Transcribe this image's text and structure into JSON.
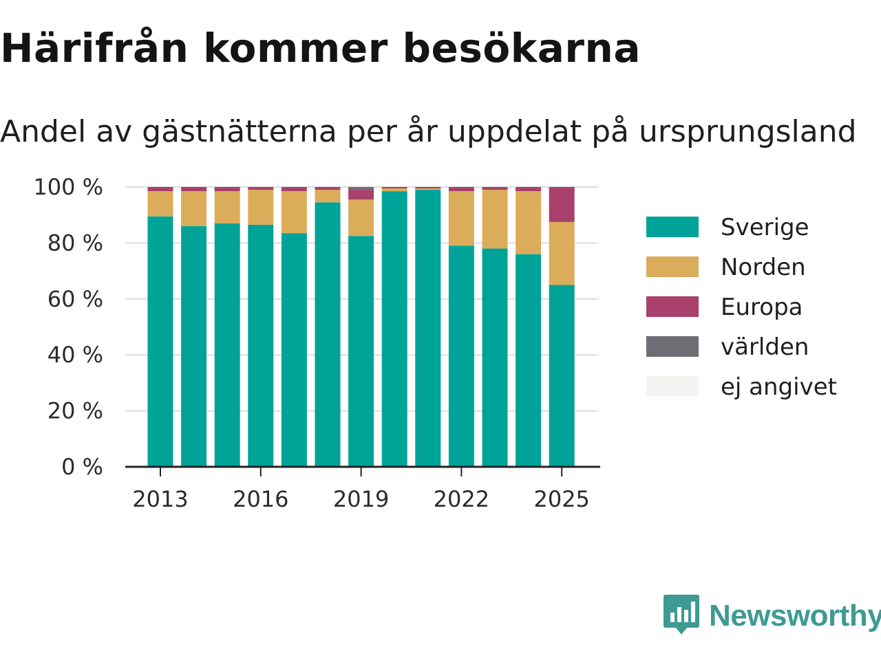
{
  "title": "Härifrån kommer besökarna",
  "subtitle": "Andel av gästnätterna per år uppdelat på ursprungsland",
  "brand": {
    "name": "Newsworthy",
    "logo_icon": "newsworthy-chart-logo-icon",
    "color": "#3e9a93"
  },
  "chart_data": {
    "type": "bar",
    "stacked": true,
    "categories": [
      "2013",
      "2014",
      "2015",
      "2016",
      "2017",
      "2018",
      "2019",
      "2020",
      "2021",
      "2022",
      "2023",
      "2024",
      "2025"
    ],
    "x_tick_labels": [
      "2013",
      "2016",
      "2019",
      "2022",
      "2025"
    ],
    "y_ticks": [
      0,
      20,
      40,
      60,
      80,
      100
    ],
    "y_tick_labels": [
      "0 %",
      "20 %",
      "40 %",
      "60 %",
      "80 %",
      "100 %"
    ],
    "ylim": [
      0,
      100
    ],
    "grid": true,
    "legend_position": "right",
    "series": [
      {
        "name": "Sverige",
        "color": "#00a398",
        "values": [
          89.5,
          86,
          87,
          86.5,
          83.5,
          94.5,
          82.5,
          98.5,
          99,
          79,
          78,
          76,
          65
        ]
      },
      {
        "name": "Norden",
        "color": "#dbad5b",
        "values": [
          9,
          12.5,
          11.5,
          12.5,
          15,
          4.5,
          13,
          1,
          0.5,
          19.5,
          21,
          22.5,
          22.5
        ]
      },
      {
        "name": "Europa",
        "color": "#a8416b",
        "values": [
          1.5,
          1.5,
          1.5,
          1,
          1.5,
          1,
          3.5,
          0.5,
          0.5,
          1.5,
          1,
          1.5,
          12.5
        ]
      },
      {
        "name": "världen",
        "color": "#6e6d73",
        "values": [
          0,
          0,
          0,
          0,
          0,
          0,
          1,
          0,
          0,
          0,
          0,
          0,
          0
        ]
      },
      {
        "name": "ej angivet",
        "color": "#f4f4f2",
        "values": [
          0,
          0,
          0,
          0,
          0,
          0,
          0,
          0,
          0,
          0,
          0,
          0,
          0
        ]
      }
    ]
  }
}
